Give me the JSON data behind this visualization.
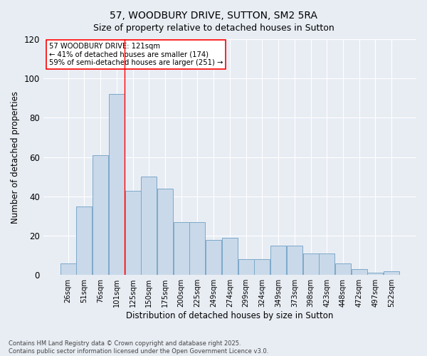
{
  "title": "57, WOODBURY DRIVE, SUTTON, SM2 5RA",
  "subtitle": "Size of property relative to detached houses in Sutton",
  "xlabel": "Distribution of detached houses by size in Sutton",
  "ylabel": "Number of detached properties",
  "categories": [
    "26sqm",
    "51sqm",
    "76sqm",
    "101sqm",
    "125sqm",
    "150sqm",
    "175sqm",
    "200sqm",
    "225sqm",
    "249sqm",
    "274sqm",
    "299sqm",
    "324sqm",
    "349sqm",
    "373sqm",
    "398sqm",
    "423sqm",
    "448sqm",
    "472sqm",
    "497sqm",
    "522sqm"
  ],
  "bar_values": [
    6,
    35,
    61,
    92,
    43,
    50,
    44,
    27,
    27,
    18,
    19,
    8,
    8,
    15,
    15,
    11,
    11,
    6,
    3,
    1,
    2
  ],
  "bar_color": "#c9d9ea",
  "bar_edge_color": "#7da8c8",
  "background_color": "#e8edf4",
  "grid_color": "#ffffff",
  "ylim": [
    0,
    120
  ],
  "yticks": [
    0,
    20,
    40,
    60,
    80,
    100,
    120
  ],
  "red_line_x": 3.5,
  "annotation_text_line1": "57 WOODBURY DRIVE: 121sqm",
  "annotation_text_line2": "← 41% of detached houses are smaller (174)",
  "annotation_text_line3": "59% of semi-detached houses are larger (251) →",
  "footer_line1": "Contains HM Land Registry data © Crown copyright and database right 2025.",
  "footer_line2": "Contains public sector information licensed under the Open Government Licence v3.0."
}
